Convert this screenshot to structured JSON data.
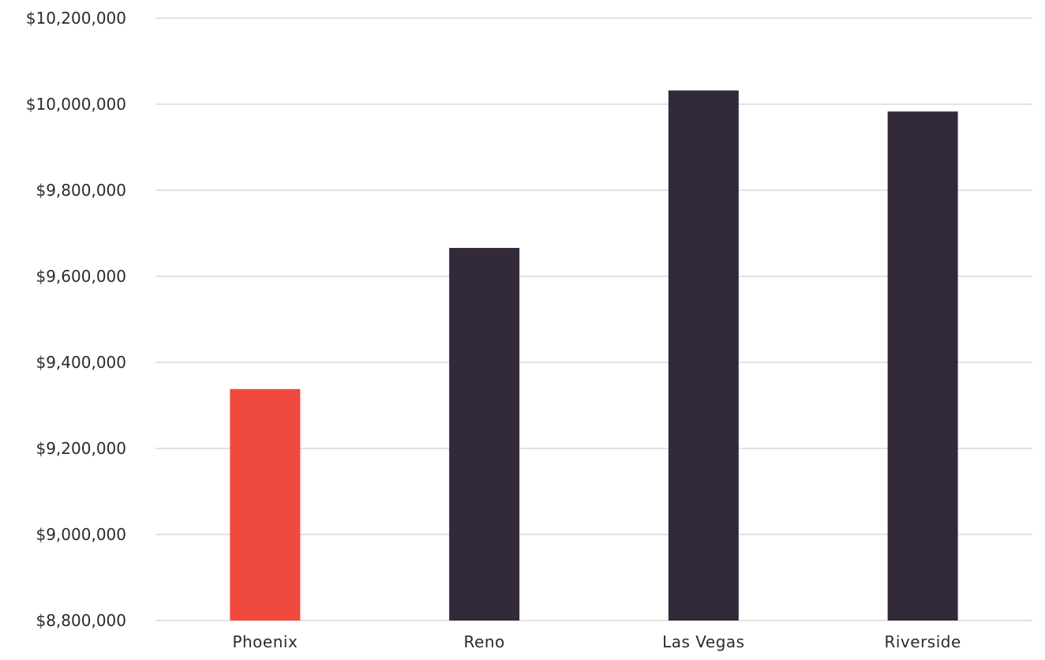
{
  "chart_data": {
    "type": "bar",
    "categories": [
      "Phoenix",
      "Reno",
      "Las Vegas",
      "Riverside"
    ],
    "values": [
      9338000,
      9666000,
      10032000,
      9983000
    ],
    "title": "",
    "xlabel": "",
    "ylabel": "",
    "ylim": [
      8800000,
      10200000
    ],
    "yticks": [
      {
        "value": 10200000,
        "label": "$10,200,000"
      },
      {
        "value": 10000000,
        "label": "$10,000,000"
      },
      {
        "value": 9800000,
        "label": "$9,800,000"
      },
      {
        "value": 9600000,
        "label": "$9,600,000"
      },
      {
        "value": 9400000,
        "label": "$9,400,000"
      },
      {
        "value": 9200000,
        "label": "$9,200,000"
      },
      {
        "value": 9000000,
        "label": "$9,000,000"
      },
      {
        "value": 8800000,
        "label": "$8,800,000"
      }
    ],
    "grid": true,
    "legend": "none",
    "colors": {
      "highlight": "#f04a3e",
      "default": "#322a3a",
      "grid": "#d9d9d9",
      "text": "#2b2b2b"
    },
    "highlight_categories": [
      "Phoenix"
    ]
  }
}
